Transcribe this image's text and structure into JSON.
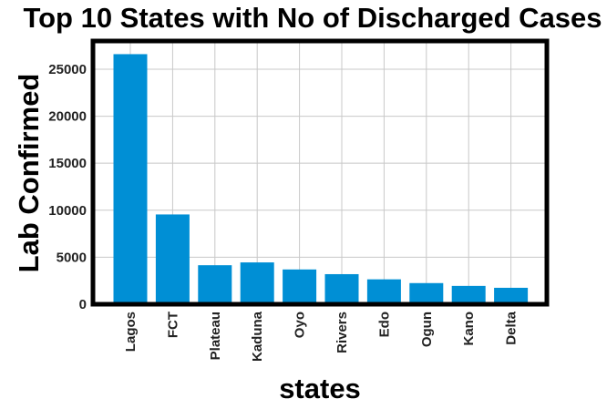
{
  "chart_data": {
    "type": "bar",
    "title": "Top 10 States with No of Discharged Cases",
    "xlabel": "states",
    "ylabel": "Lab Confirmed",
    "categories": [
      "Lagos",
      "FCT",
      "Plateau",
      "Kaduna",
      "Oyo",
      "Rivers",
      "Edo",
      "Ogun",
      "Kano",
      "Delta"
    ],
    "values": [
      26600,
      9550,
      4150,
      4450,
      3700,
      3200,
      2650,
      2250,
      1950,
      1750
    ],
    "ylim": [
      0,
      28000
    ],
    "yticks": [
      0,
      5000,
      10000,
      15000,
      20000,
      25000
    ],
    "grid": true,
    "bar_color": "#008fd5"
  }
}
